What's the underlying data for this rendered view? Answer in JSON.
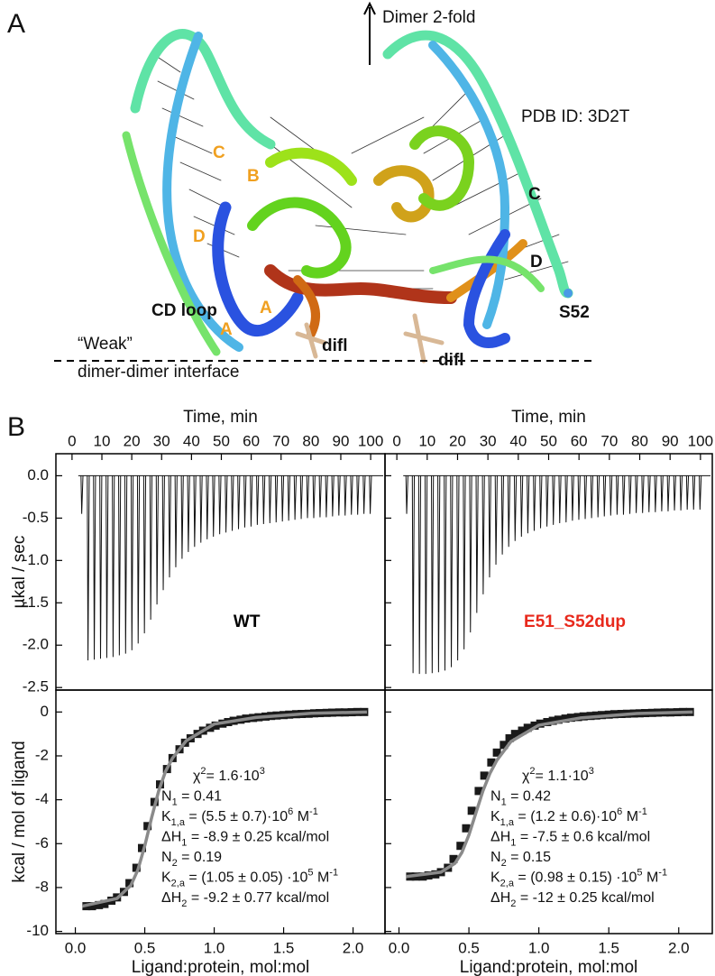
{
  "panel_a": {
    "label": "A",
    "axis_label": "Dimer 2-fold",
    "pdb": "PDB ID: 3D2T",
    "cd_loop": "CD loop",
    "s52": "S52",
    "difl_left": "difl",
    "difl_right": "difl",
    "weak": "“Weak”",
    "interface": "dimer-dimer interface",
    "strands_left": [
      "C",
      "B",
      "D",
      "A",
      "A"
    ],
    "strands_right": [
      "C",
      "D"
    ]
  },
  "panel_b": {
    "label": "B"
  },
  "chart_data": [
    {
      "type": "thermogram",
      "xlabel": "Time, min",
      "ylabel": "µkal / sec",
      "label": "WT",
      "label_color": "#000000",
      "color": "#111111",
      "xlim": [
        -5.4,
        104.8
      ],
      "ylim": [
        -2.53,
        0.26
      ],
      "xticks": [
        0,
        10,
        20,
        30,
        40,
        50,
        60,
        70,
        80,
        90,
        100
      ],
      "yticks": [
        {
          "value": 0,
          "label": "0.0"
        },
        -0.5,
        {
          "value": -1,
          "label": "-1.0"
        },
        -1.5,
        {
          "value": -2,
          "label": "-2.0"
        },
        -2.5
      ],
      "x": [
        3,
        5.1,
        7.2,
        9.3,
        11.4,
        13.5,
        15.6,
        17.7,
        19.8,
        21.9,
        24,
        26.1,
        28.2,
        30.3,
        32.4,
        34.5,
        36.6,
        38.7,
        40.8,
        42.9,
        45,
        47.1,
        49.2,
        51.3,
        53.4,
        55.5,
        57.6,
        59.7,
        61.8,
        63.9,
        66,
        68.1,
        70.2,
        72.3,
        74.4,
        76.5,
        78.6,
        80.7,
        82.8,
        84.9,
        87,
        89.1,
        91.2,
        93.3,
        95.4,
        97.5,
        99.6
      ],
      "values": [
        -0.45,
        -2.18,
        -2.17,
        -2.16,
        -2.15,
        -2.14,
        -2.12,
        -2.1,
        -2.06,
        -1.98,
        -1.86,
        -1.7,
        -1.52,
        -1.35,
        -1.2,
        -1.08,
        -0.98,
        -0.9,
        -0.84,
        -0.79,
        -0.75,
        -0.72,
        -0.69,
        -0.67,
        -0.65,
        -0.63,
        -0.61,
        -0.6,
        -0.58,
        -0.57,
        -0.56,
        -0.55,
        -0.54,
        -0.53,
        -0.52,
        -0.51,
        -0.5,
        -0.5,
        -0.49,
        -0.49,
        -0.48,
        -0.47,
        -0.47,
        -0.46,
        -0.46,
        -0.45,
        -0.45
      ]
    },
    {
      "type": "thermogram",
      "xlabel": "Time, min",
      "label": "E51_S52dup",
      "label_color": "#e8291c",
      "color": "#111111",
      "xlim": [
        -3.9,
        103.9
      ],
      "ylim": [
        -2.53,
        0.26
      ],
      "xticks": [
        0,
        10,
        20,
        30,
        40,
        50,
        60,
        70,
        80,
        90,
        100
      ],
      "yticks": [
        0,
        -0.5,
        -1,
        -1.5,
        -2,
        -2.5
      ],
      "x": [
        3,
        5.1,
        7.2,
        9.3,
        11.4,
        13.5,
        15.6,
        17.7,
        19.8,
        21.9,
        24,
        26.1,
        28.2,
        30.3,
        32.4,
        34.5,
        36.6,
        38.7,
        40.8,
        42.9,
        45,
        47.1,
        49.2,
        51.3,
        53.4,
        55.5,
        57.6,
        59.7,
        61.8,
        63.9,
        66,
        68.1,
        70.2,
        72.3,
        74.4,
        76.5,
        78.6,
        80.7,
        82.8,
        84.9,
        87,
        89.1,
        91.2,
        93.3,
        95.4,
        97.5,
        99.6
      ],
      "values": [
        -0.45,
        -2.33,
        -2.34,
        -2.34,
        -2.33,
        -2.32,
        -2.3,
        -2.26,
        -2.18,
        -2.05,
        -1.85,
        -1.62,
        -1.4,
        -1.2,
        -1.05,
        -0.93,
        -0.84,
        -0.77,
        -0.72,
        -0.68,
        -0.65,
        -0.62,
        -0.6,
        -0.58,
        -0.56,
        -0.55,
        -0.53,
        -0.52,
        -0.51,
        -0.5,
        -0.49,
        -0.48,
        -0.47,
        -0.46,
        -0.46,
        -0.45,
        -0.44,
        -0.44,
        -0.43,
        -0.43,
        -0.42,
        -0.42,
        -0.41,
        -0.41,
        -0.4,
        -0.4,
        -0.4
      ]
    },
    {
      "type": "scatter",
      "xlabel": "Ligand:protein, mol:mol",
      "ylabel": "kcal / mol of ligand",
      "xlim": [
        -0.14,
        2.23
      ],
      "ylim": [
        -10.1,
        1.0
      ],
      "xticks": [
        {
          "value": 0,
          "label": "0.0"
        },
        0.5,
        {
          "value": 1,
          "label": "1.0"
        },
        1.5,
        {
          "value": 2,
          "label": "2.0"
        }
      ],
      "yticks": [
        0,
        -2,
        -4,
        -6,
        -8,
        -10
      ],
      "x": [
        0.08,
        0.12,
        0.17,
        0.21,
        0.26,
        0.3,
        0.35,
        0.39,
        0.44,
        0.48,
        0.52,
        0.57,
        0.61,
        0.66,
        0.7,
        0.75,
        0.79,
        0.83,
        0.88,
        0.92,
        0.97,
        1.01,
        1.06,
        1.1,
        1.14,
        1.19,
        1.23,
        1.28,
        1.32,
        1.37,
        1.41,
        1.45,
        1.5,
        1.54,
        1.59,
        1.63,
        1.68,
        1.72,
        1.76,
        1.81,
        1.85,
        1.9,
        1.94,
        1.99,
        2.03,
        2.08
      ],
      "values": [
        -8.85,
        -8.85,
        -8.8,
        -8.75,
        -8.6,
        -8.45,
        -8.2,
        -7.8,
        -7.1,
        -6.2,
        -5.2,
        -4.1,
        -3.3,
        -2.6,
        -2.1,
        -1.7,
        -1.4,
        -1.2,
        -1.0,
        -0.85,
        -0.72,
        -0.62,
        -0.53,
        -0.46,
        -0.4,
        -0.35,
        -0.3,
        -0.27,
        -0.24,
        -0.21,
        -0.18,
        -0.16,
        -0.14,
        -0.12,
        -0.1,
        -0.09,
        -0.08,
        -0.06,
        -0.05,
        -0.04,
        -0.03,
        -0.02,
        -0.02,
        -0.01,
        0,
        0
      ],
      "color": "#1a1a1a",
      "fit": {
        "x": [
          0.05,
          0.3,
          0.4,
          0.45,
          0.5,
          0.55,
          0.6,
          0.65,
          0.7,
          0.8,
          1.0,
          1.3,
          1.7,
          2.1
        ],
        "values": [
          -8.85,
          -8.5,
          -7.9,
          -7.2,
          -6.1,
          -4.8,
          -3.6,
          -2.7,
          -2.1,
          -1.3,
          -0.55,
          -0.25,
          -0.06,
          0
        ],
        "color": "#8a8a8a"
      },
      "annotation": [
        [
          {
            "text": "χ"
          },
          {
            "sup": "2"
          },
          {
            "text": "= 1.6·10"
          },
          {
            "sup": "3"
          }
        ],
        [
          {
            "text": "N"
          },
          {
            "sub": "1"
          },
          {
            "text": "   = 0.41"
          }
        ],
        [
          {
            "text": "K"
          },
          {
            "sub": "1,a"
          },
          {
            "text": " = (5.5 ± 0.7)·10"
          },
          {
            "sup": "6"
          },
          {
            "text": " M"
          },
          {
            "sup": "-1"
          }
        ],
        [
          {
            "text": "ΔH"
          },
          {
            "sub": "1"
          },
          {
            "text": " = -8.9 ± 0.25 kcal/mol"
          }
        ],
        [
          {
            "text": "N"
          },
          {
            "sub": "2"
          },
          {
            "text": "   = 0.19"
          }
        ],
        [
          {
            "text": "K"
          },
          {
            "sub": "2,a"
          },
          {
            "text": " = (1.05 ± 0.05) ·10"
          },
          {
            "sup": "5"
          },
          {
            "text": " M"
          },
          {
            "sup": "-1"
          }
        ],
        [
          {
            "text": "ΔH"
          },
          {
            "sub": "2"
          },
          {
            "text": " = -9.2 ± 0.77 kcal/mol"
          }
        ]
      ]
    },
    {
      "type": "scatter",
      "xlabel": "Ligand:protein, mol:mol",
      "xlim": [
        -0.1,
        2.24
      ],
      "ylim": [
        -10.1,
        1.0
      ],
      "xticks": [
        {
          "value": 0,
          "label": "0.0"
        },
        0.5,
        {
          "value": 1,
          "label": "1.0"
        },
        1.5,
        {
          "value": 2,
          "label": "2.0"
        }
      ],
      "yticks": [
        0,
        -2,
        -4,
        -6,
        -8,
        -10
      ],
      "x": [
        0.08,
        0.12,
        0.17,
        0.21,
        0.26,
        0.3,
        0.35,
        0.39,
        0.44,
        0.48,
        0.52,
        0.57,
        0.61,
        0.66,
        0.7,
        0.75,
        0.79,
        0.83,
        0.88,
        0.92,
        0.97,
        1.01,
        1.06,
        1.1,
        1.14,
        1.19,
        1.23,
        1.28,
        1.32,
        1.37,
        1.41,
        1.45,
        1.5,
        1.54,
        1.59,
        1.63,
        1.68,
        1.72,
        1.76,
        1.81,
        1.85,
        1.9,
        1.94,
        1.99,
        2.03,
        2.08
      ],
      "values": [
        -7.5,
        -7.5,
        -7.5,
        -7.45,
        -7.4,
        -7.3,
        -7.1,
        -6.7,
        -6.1,
        -5.3,
        -4.5,
        -3.6,
        -2.9,
        -2.3,
        -1.85,
        -1.5,
        -1.2,
        -1.0,
        -0.85,
        -0.72,
        -0.62,
        -0.53,
        -0.46,
        -0.4,
        -0.35,
        -0.3,
        -0.26,
        -0.23,
        -0.2,
        -0.18,
        -0.16,
        -0.14,
        -0.12,
        -0.1,
        -0.09,
        -0.08,
        -0.07,
        -0.06,
        -0.05,
        -0.04,
        -0.03,
        -0.02,
        -0.02,
        -0.01,
        0,
        0
      ],
      "color": "#1a1a1a",
      "fit": {
        "x": [
          0.05,
          0.3,
          0.4,
          0.45,
          0.5,
          0.55,
          0.6,
          0.65,
          0.7,
          0.8,
          1.0,
          1.3,
          1.7,
          2.1
        ],
        "values": [
          -7.5,
          -7.3,
          -6.9,
          -6.4,
          -5.6,
          -4.6,
          -3.6,
          -2.8,
          -2.2,
          -1.35,
          -0.6,
          -0.27,
          -0.07,
          0
        ],
        "color": "#8a8a8a"
      },
      "annotation": [
        [
          {
            "text": "χ"
          },
          {
            "sup": "2"
          },
          {
            "text": "= 1.1·10"
          },
          {
            "sup": "3"
          }
        ],
        [
          {
            "text": "N"
          },
          {
            "sub": "1"
          },
          {
            "text": "   = 0.42"
          }
        ],
        [
          {
            "text": "K"
          },
          {
            "sub": "1,a"
          },
          {
            "text": " = (1.2 ± 0.6)·10"
          },
          {
            "sup": "6"
          },
          {
            "text": " M"
          },
          {
            "sup": "-1"
          }
        ],
        [
          {
            "text": "ΔH"
          },
          {
            "sub": "1"
          },
          {
            "text": " = -7.5 ± 0.6   kcal/mol"
          }
        ],
        [
          {
            "text": "N"
          },
          {
            "sub": "2"
          },
          {
            "text": "   = 0.15"
          }
        ],
        [
          {
            "text": "K"
          },
          {
            "sub": "2,a"
          },
          {
            "text": " = (0.98 ± 0.15) ·10"
          },
          {
            "sup": "5"
          },
          {
            "text": " M"
          },
          {
            "sup": "-1"
          }
        ],
        [
          {
            "text": "ΔH"
          },
          {
            "sub": "2"
          },
          {
            "text": " = -12 ± 0.25 kcal/mol"
          }
        ]
      ]
    }
  ]
}
